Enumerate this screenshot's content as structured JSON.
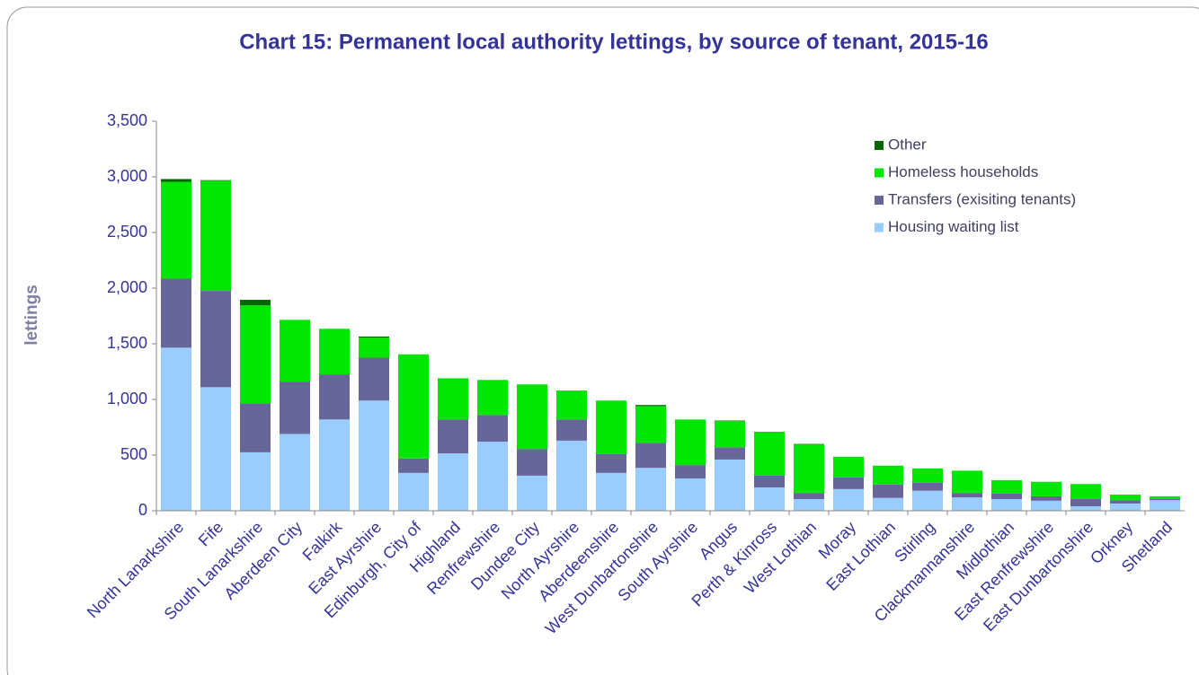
{
  "chart_data": {
    "type": "stacked_bar",
    "title": "Chart 15: Permanent local authority lettings, by source of tenant, 2015-16",
    "ylabel": "lettings",
    "categories": [
      "North Lanarkshire",
      "Fife",
      "South Lanarkshire",
      "Aberdeen City",
      "Falkirk",
      "East Ayrshire",
      "Edinburgh, City of",
      "Highland",
      "Renfrewshire",
      "Dundee City",
      "North Ayrshire",
      "Aberdeenshire",
      "West Dunbartonshire",
      "South Ayrshire",
      "Angus",
      "Perth & Kinross",
      "West Lothian",
      "Moray",
      "East Lothian",
      "Stirling",
      "Clackmannanshire",
      "Midlothian",
      "East Renfrewshire",
      "East Dunbartonshire",
      "Orkney",
      "Shetland"
    ],
    "series": [
      {
        "name": "Housing waiting list",
        "color": "#99ccff",
        "values": [
          1465,
          1110,
          525,
          690,
          820,
          990,
          340,
          515,
          620,
          315,
          630,
          340,
          385,
          290,
          460,
          210,
          105,
          195,
          115,
          180,
          120,
          105,
          90,
          40,
          65,
          95
        ]
      },
      {
        "name": "Transfers (exisiting tenants)",
        "color": "#666699",
        "values": [
          620,
          865,
          440,
          470,
          405,
          385,
          130,
          305,
          240,
          240,
          190,
          170,
          225,
          120,
          110,
          105,
          55,
          105,
          120,
          70,
          40,
          50,
          40,
          65,
          30,
          10
        ]
      },
      {
        "name": "Homeless households",
        "color": "#00e600",
        "values": [
          870,
          990,
          880,
          555,
          410,
          180,
          935,
          370,
          315,
          580,
          260,
          480,
          330,
          410,
          235,
          395,
          435,
          185,
          170,
          130,
          200,
          120,
          130,
          135,
          50,
          25
        ]
      },
      {
        "name": "Other",
        "color": "#006600",
        "values": [
          25,
          5,
          50,
          0,
          0,
          10,
          0,
          0,
          0,
          0,
          0,
          0,
          10,
          0,
          5,
          0,
          5,
          0,
          0,
          0,
          0,
          0,
          0,
          0,
          0,
          0
        ]
      }
    ],
    "ylim": [
      0,
      3500
    ],
    "yticks": [
      0,
      500,
      {
        "value": 1000,
        "label": "1,000"
      },
      {
        "value": 1500,
        "label": "1,500"
      },
      {
        "value": 2000,
        "label": "2,000"
      },
      {
        "value": 2500,
        "label": "2,500"
      },
      {
        "value": 3000,
        "label": "3,000"
      },
      {
        "value": 3500,
        "label": "3,500"
      }
    ],
    "legend": "upper right"
  }
}
